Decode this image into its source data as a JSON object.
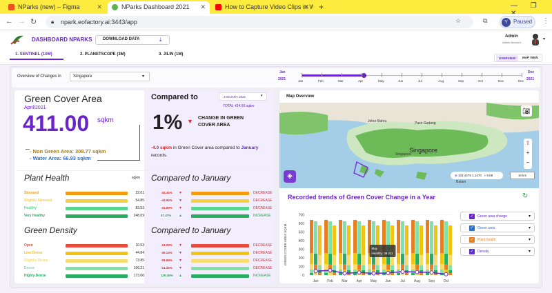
{
  "browser": {
    "tabs": [
      {
        "title": "NParks (new) – Figma",
        "color": "#f24e1e"
      },
      {
        "title": "NParks Dashboard 2021",
        "color": "#5db14e"
      },
      {
        "title": "How to Capture Video Clips in W",
        "color": "#ff0000"
      }
    ],
    "url": "npark.eofactory.ai:3443/app",
    "profile": "Y",
    "paused": "Paused"
  },
  "header": {
    "brand": "DASHBOARD NPARKS",
    "download": "DOWNLOAD DATA",
    "user": "Admin",
    "role": "Admin Account"
  },
  "sources": [
    "1. SENTINEL (10M)",
    "2. PLANETSCOPE (3M)",
    "3. JILIN (1M)"
  ],
  "view": {
    "overview": "OVERVIEW",
    "map": "MAP VIEW"
  },
  "overview": {
    "label": "Overview of Changes in",
    "region": "Singapore",
    "start_month": "Jan",
    "start_year": "2021",
    "end_month": "Dec",
    "end_year": "2021",
    "months": [
      "Jan",
      "Feb",
      "Mar",
      "Apr",
      "May",
      "Jun",
      "Jul",
      "Aug",
      "Sep",
      "Oct",
      "Nov",
      "Dec"
    ],
    "selected_month": 3
  },
  "green_cover": {
    "title": "Green Cover Area",
    "date": "April/2021",
    "value": "411.00",
    "unit": "sqkm",
    "non_green": "- Non Green Area: 308.77 sqkm",
    "water": "- Water Area: 66.93 sqkm"
  },
  "compared": {
    "title": "Compared to",
    "month": "JANUARY 2021",
    "total": "TOTAL 414.99 sqkm",
    "percent": "1%",
    "change_label": "CHANGE IN GREEN COVER AREA",
    "delta_value": "-4.0 sqkm",
    "delta_text": "in Green Cover area compared to",
    "delta_month": "January",
    "delta_tail": "records."
  },
  "plant_health": {
    "title": "Plant Health",
    "unit": "sqkm",
    "rows": [
      {
        "label": "Stressed",
        "value": "22.01",
        "color": "#f39c12",
        "pct": "-34.44%",
        "dir": "DECREASE"
      },
      {
        "label": "Slightly Stressed",
        "value": "54.85",
        "color": "#f4d03f",
        "pct": "-44.84%",
        "dir": "DECREASE"
      },
      {
        "label": "Healthy",
        "value": "83.53",
        "color": "#58d68d",
        "pct": "-31.59%",
        "dir": "DECREASE"
      },
      {
        "label": "Very Healthy",
        "value": "248.09",
        "color": "#27ae60",
        "pct": "57.47%",
        "dir": "INCREASE"
      }
    ],
    "compare_title": "Compared to January"
  },
  "green_density": {
    "title": "Green Density",
    "rows": [
      {
        "label": "Open",
        "value": "10.53",
        "color": "#e74c3c",
        "pct": "-24.09%",
        "dir": "DECREASE"
      },
      {
        "label": "Low Dense",
        "value": "44.84",
        "color": "#f1c40f",
        "pct": "-45.14%",
        "dir": "DECREASE"
      },
      {
        "label": "Slightly Dense",
        "value": "73.85",
        "color": "#f7dc6f",
        "pct": "-26.69%",
        "dir": "DECREASE"
      },
      {
        "label": "Dense",
        "value": "106.21",
        "color": "#82e0aa",
        "pct": "-14.34%",
        "dir": "DECREASE"
      },
      {
        "label": "Highly Dense",
        "value": "173.06",
        "color": "#27ae60",
        "pct": "126.45%",
        "dir": "INCREASE"
      }
    ],
    "compare_title": "Compared to January"
  },
  "map": {
    "title": "Map Overview",
    "label": "Singapore",
    "places": [
      "Johor Bahru",
      "Pasir Gudang",
      "Singapore",
      "Batam"
    ],
    "coords": "103.4475 1.1470",
    "zoom": "9.08",
    "scale": "10 km"
  },
  "trend": {
    "title": "Recorded trends of Green Cover Change in a Year",
    "ylabel": "GREEN COVER AREA SQKM",
    "legend": [
      "Green area change",
      "Green area",
      "Plant health",
      "Density"
    ],
    "tooltip": {
      "month": "May",
      "label": "Healthy",
      "value": "39.211"
    }
  },
  "chart_data": {
    "type": "bar",
    "categories": [
      "Jan",
      "Feb",
      "Mar",
      "Apr",
      "May",
      "Jun",
      "Jul",
      "Aug",
      "Sep",
      "Oct"
    ],
    "yticks": [
      "0",
      "100",
      "200",
      "300",
      "400",
      "500",
      "600",
      "700"
    ],
    "ylim": [
      0,
      800
    ],
    "stack_order": [
      "Open",
      "Low Dense",
      "Slightly Dense",
      "Dense",
      "Highly Dense"
    ],
    "series": [
      {
        "name": "Green area change",
        "type": "line",
        "values": [
          45,
          55,
          20,
          30,
          20,
          25,
          40,
          35,
          30,
          10
        ]
      }
    ]
  }
}
